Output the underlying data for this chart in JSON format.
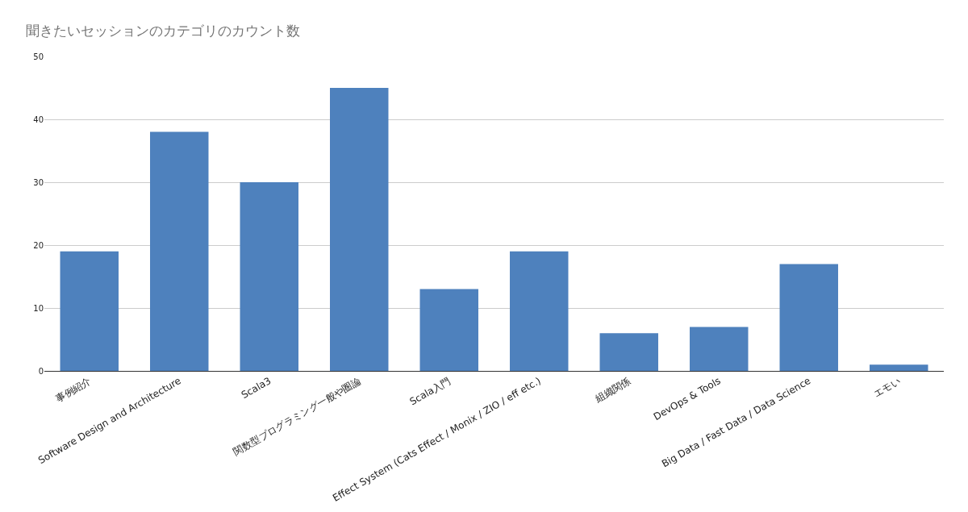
{
  "chart_data": {
    "type": "bar",
    "title": "聞きたいセッションのカテゴリのカウント数",
    "categories": [
      "事例紹介",
      "Software Design and Architecture",
      "Scala3",
      "関数型プログラミング一般や圏論",
      "Scala入門",
      "Effect System (Cats Effect / Monix / ZIO / eff etc.)",
      "組織関係",
      "DevOps & Tools",
      "Big Data / Fast Data / Data Science",
      "エモい"
    ],
    "values": [
      19,
      38,
      30,
      45,
      13,
      19,
      6,
      7,
      17,
      1
    ],
    "color": "#4e81bd",
    "ylim": [
      0,
      50
    ],
    "yticks": [
      0,
      10,
      20,
      30,
      40,
      50
    ],
    "grid": "y"
  }
}
